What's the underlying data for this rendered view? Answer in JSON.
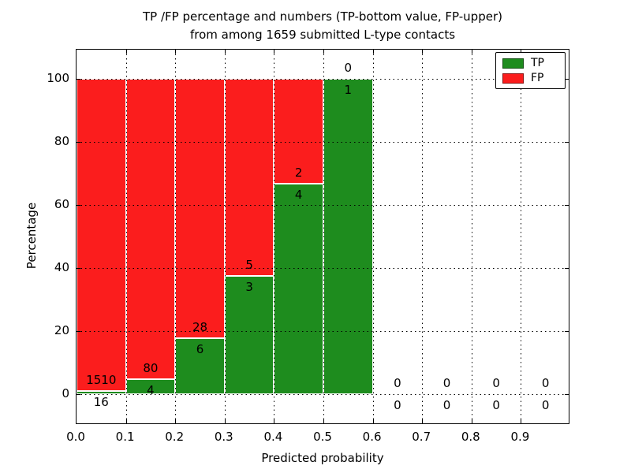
{
  "chart_data": {
    "type": "bar",
    "stacked": true,
    "title_line1": "TP /FP percentage and numbers (TP-bottom value, FP-upper)",
    "title_line2": "from among 1659 submitted L-type contacts",
    "xlabel": "Predicted probability",
    "ylabel": "Percentage",
    "total_submitted": 1659,
    "xlim": [
      0.0,
      1.0
    ],
    "ylim": [
      -10,
      110
    ],
    "x_ticks": [
      "0.0",
      "0.1",
      "0.2",
      "0.3",
      "0.4",
      "0.5",
      "0.6",
      "0.7",
      "0.8",
      "0.9"
    ],
    "y_ticks": [
      "0",
      "20",
      "40",
      "60",
      "80",
      "100"
    ],
    "grid": {
      "style": "dotted",
      "color": "#000000"
    },
    "bin_width": 0.1,
    "bin_starts": [
      0.0,
      0.1,
      0.2,
      0.3,
      0.4,
      0.5,
      0.6,
      0.7,
      0.8,
      0.9
    ],
    "series": [
      {
        "name": "TP",
        "color": "#1e8c1e",
        "counts": [
          16,
          4,
          6,
          3,
          4,
          1,
          0,
          0,
          0,
          0
        ]
      },
      {
        "name": "FP",
        "color": "#fb1d1d",
        "counts": [
          1510,
          80,
          28,
          5,
          2,
          0,
          0,
          0,
          0,
          0
        ]
      }
    ],
    "tp_percent_by_bin": [
      1.05,
      4.76,
      17.65,
      37.5,
      66.67,
      100.0,
      0,
      0,
      0,
      0
    ],
    "legend": {
      "position": "upper right",
      "entries": [
        "TP",
        "FP"
      ]
    },
    "colors": {
      "tp": "#1e8c1e",
      "fp": "#fb1d1d",
      "grid": "#000000",
      "bar_edge": "#ffffff"
    }
  }
}
